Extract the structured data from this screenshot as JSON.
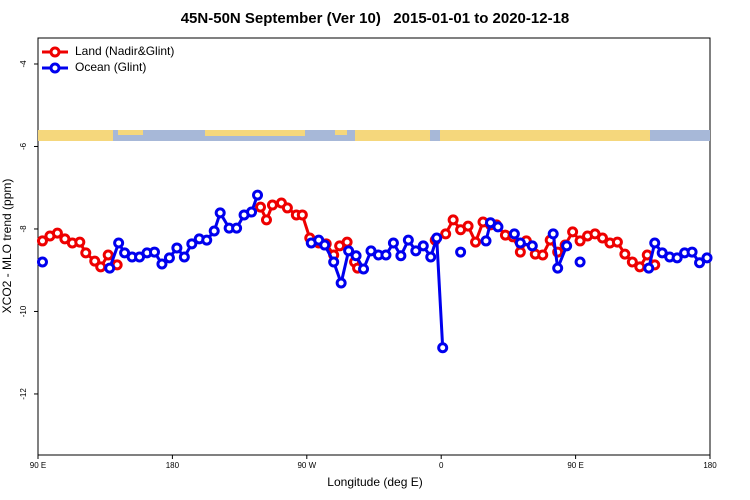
{
  "chart_data": {
    "type": "line",
    "title": "45N-50N September (Ver 10)   2015-01-01 to 2020-12-18",
    "x_label": "Longitude (deg E)",
    "y_label": "XCO2 - MLO trend (ppm)",
    "xlim": [
      90,
      540
    ],
    "ylim": [
      -13.48,
      -3.37
    ],
    "xticks": [
      {
        "value": 90,
        "label": "90 E"
      },
      {
        "value": 180,
        "label": "180"
      },
      {
        "value": 270,
        "label": "90 W"
      },
      {
        "value": 360,
        "label": "0"
      },
      {
        "value": 450,
        "label": "90 E"
      },
      {
        "value": 540,
        "label": "180"
      }
    ],
    "yticks": [
      -12,
      -10,
      -8,
      -6,
      -4
    ],
    "legend": "top-left",
    "series": [
      {
        "name": "Land (Nadir&Glint)",
        "color": "#ee0000",
        "x": [
          93,
          98,
          103,
          108,
          113,
          118,
          122,
          128,
          132,
          137,
          143,
          null,
          239,
          243,
          247,
          253,
          257,
          263,
          267,
          272,
          278,
          283,
          288,
          292,
          297,
          302,
          304,
          null,
          356,
          363,
          368,
          373,
          378,
          383,
          388,
          393,
          397,
          403,
          408,
          413,
          417,
          423,
          428,
          433,
          438,
          443,
          448,
          453,
          458,
          463,
          468,
          473,
          478,
          483,
          488,
          493,
          498,
          503
        ],
        "values": [
          -8.29,
          -8.17,
          -8.1,
          -8.24,
          -8.34,
          -8.32,
          -8.58,
          -8.78,
          -8.92,
          -8.63,
          -8.87,
          null,
          -7.47,
          -7.78,
          -7.42,
          -7.37,
          -7.49,
          -7.66,
          -7.66,
          -8.22,
          -8.34,
          -8.36,
          -8.63,
          -8.41,
          -8.32,
          -8.8,
          -8.95,
          null,
          -8.27,
          -8.12,
          -7.78,
          -8.02,
          -7.93,
          -8.32,
          -7.83,
          -7.9,
          -7.9,
          -8.15,
          -8.19,
          -8.56,
          -8.29,
          -8.61,
          -8.63,
          -8.27,
          -8.56,
          -8.39,
          -8.07,
          -8.29,
          -8.17,
          -8.12,
          -8.22,
          -8.34,
          -8.32,
          -8.61,
          -8.8,
          -8.92,
          -8.63,
          -8.87
        ]
      },
      {
        "name": "Ocean (Glint)",
        "color": "#0000ee",
        "x": [
          93,
          null,
          138,
          144,
          148,
          153,
          158,
          163,
          168,
          173,
          178,
          183,
          188,
          193,
          198,
          203,
          208,
          212,
          218,
          223,
          228,
          233,
          237,
          null,
          273,
          278,
          282,
          288,
          293,
          298,
          303,
          308,
          313,
          318,
          323,
          328,
          333,
          338,
          343,
          348,
          353,
          357,
          361,
          null,
          373,
          null,
          390,
          393,
          398,
          null,
          409,
          413,
          421,
          null,
          435,
          438,
          444,
          null,
          453,
          null,
          499,
          503,
          508,
          513,
          518,
          523,
          528,
          533,
          538
        ],
        "values": [
          -8.8,
          null,
          -8.95,
          -8.34,
          -8.58,
          -8.68,
          -8.68,
          -8.58,
          -8.56,
          -8.85,
          -8.7,
          -8.46,
          -8.68,
          -8.36,
          -8.24,
          -8.27,
          -8.05,
          -7.61,
          -7.98,
          -7.98,
          -7.66,
          -7.59,
          -7.18,
          null,
          -8.34,
          -8.27,
          -8.39,
          -8.8,
          -9.31,
          -8.53,
          -8.65,
          -8.97,
          -8.53,
          -8.63,
          -8.63,
          -8.34,
          -8.65,
          -8.27,
          -8.53,
          -8.41,
          -8.68,
          -8.22,
          -10.88,
          null,
          -8.56,
          null,
          -8.29,
          -7.85,
          -7.95,
          null,
          -8.12,
          -8.34,
          -8.41,
          null,
          -8.12,
          -8.95,
          -8.41,
          null,
          -8.8,
          null,
          -8.95,
          -8.34,
          -8.58,
          -8.68,
          -8.7,
          -8.58,
          -8.56,
          -8.82,
          -8.7
        ]
      }
    ]
  }
}
